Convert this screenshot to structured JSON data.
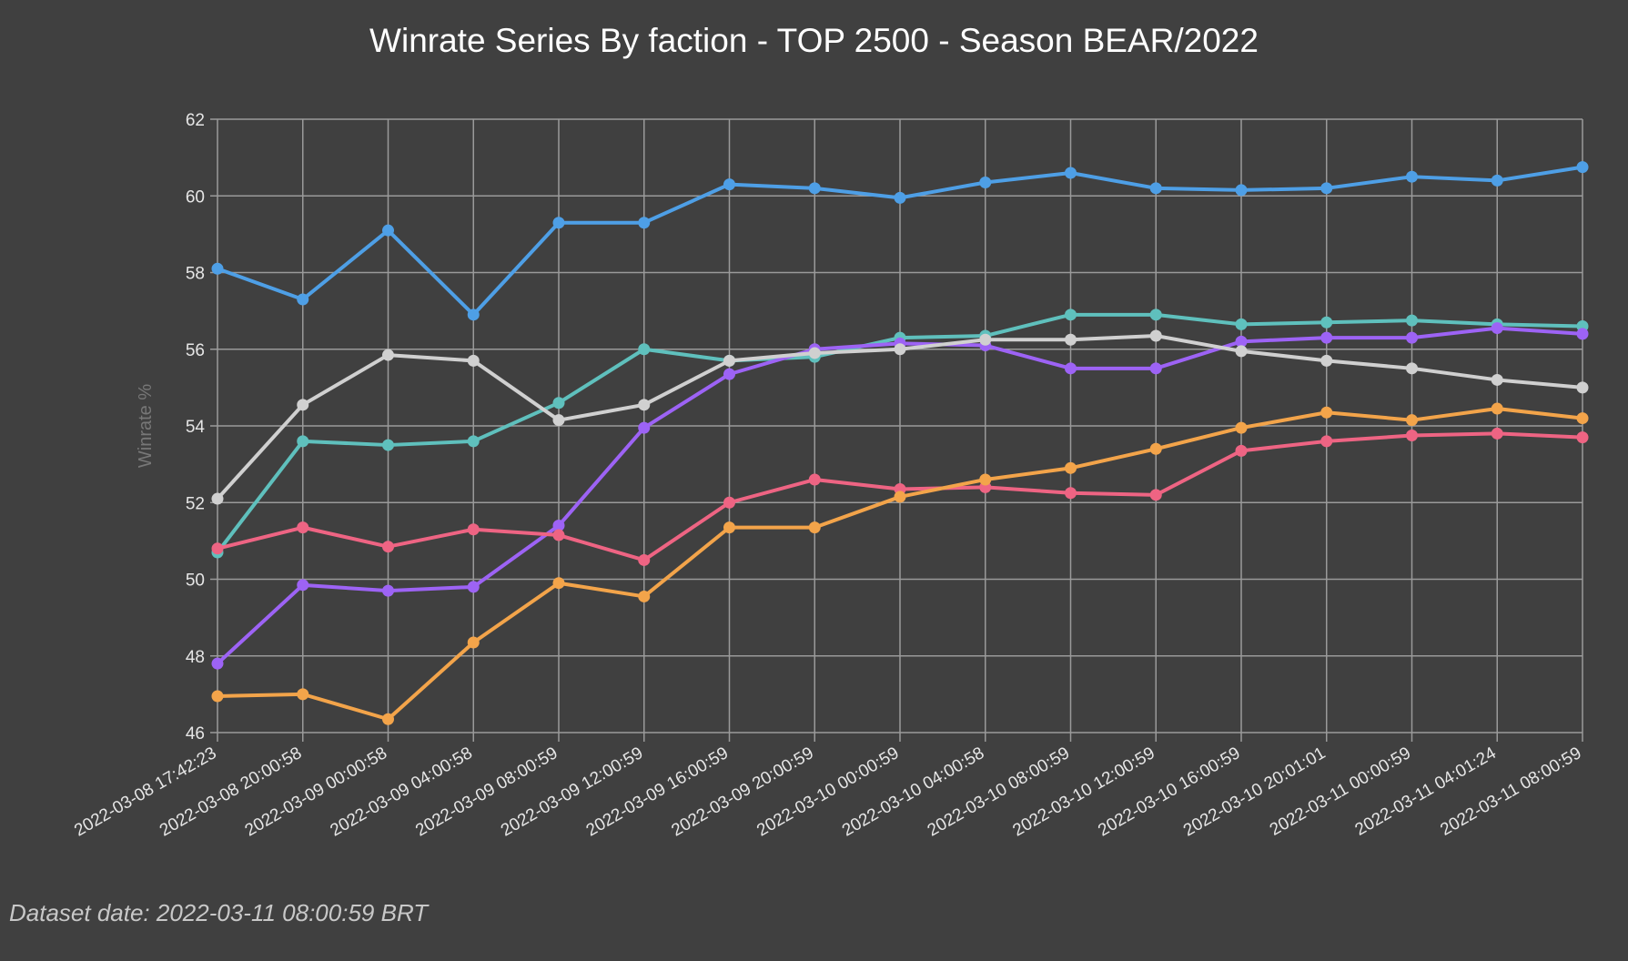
{
  "chart_data": {
    "type": "line",
    "title": "Winrate Series By faction - TOP 2500 - Season BEAR/2022",
    "xlabel": "",
    "ylabel": "Winrate %",
    "ylim": [
      46,
      62
    ],
    "yticks": [
      46,
      48,
      50,
      52,
      54,
      56,
      58,
      60,
      62
    ],
    "grid": true,
    "legend": "none",
    "categories": [
      "2022-03-08 17:42:23",
      "2022-03-08 20:00:58",
      "2022-03-09 00:00:58",
      "2022-03-09 04:00:58",
      "2022-03-09 08:00:59",
      "2022-03-09 12:00:59",
      "2022-03-09 16:00:59",
      "2022-03-09 20:00:59",
      "2022-03-10 00:00:59",
      "2022-03-10 04:00:58",
      "2022-03-10 08:00:59",
      "2022-03-10 12:00:59",
      "2022-03-10 16:00:59",
      "2022-03-10 20:01:01",
      "2022-03-11 00:00:59",
      "2022-03-11 04:01:24",
      "2022-03-11 08:00:59"
    ],
    "series": [
      {
        "color": "#4e9fe6",
        "values": [
          58.1,
          57.3,
          59.1,
          56.9,
          59.3,
          59.3,
          60.3,
          60.2,
          59.95,
          60.35,
          60.6,
          60.2,
          60.15,
          60.2,
          60.5,
          60.4,
          60.75
        ]
      },
      {
        "color": "#5fc0bd",
        "values": [
          50.7,
          53.6,
          53.5,
          53.6,
          54.6,
          56.0,
          55.7,
          55.8,
          56.3,
          56.35,
          56.9,
          56.9,
          56.65,
          56.7,
          56.75,
          56.65,
          56.6
        ]
      },
      {
        "color": "#9d63f5",
        "values": [
          47.8,
          49.85,
          49.7,
          49.8,
          51.4,
          53.95,
          55.35,
          56.0,
          56.15,
          56.1,
          55.5,
          55.5,
          56.2,
          56.3,
          56.3,
          56.55,
          56.4
        ]
      },
      {
        "color": "#d0d0d0",
        "values": [
          52.1,
          54.55,
          55.85,
          55.7,
          54.15,
          54.55,
          55.7,
          55.9,
          56.0,
          56.25,
          56.25,
          56.35,
          55.95,
          55.7,
          55.5,
          55.2,
          55.0
        ]
      },
      {
        "color": "#ee6483",
        "values": [
          50.8,
          51.35,
          50.85,
          51.3,
          51.15,
          50.5,
          52.0,
          52.6,
          52.35,
          52.4,
          52.25,
          52.2,
          53.35,
          53.6,
          53.75,
          53.8,
          53.7
        ]
      },
      {
        "color": "#f3a44a",
        "values": [
          46.95,
          47.0,
          46.35,
          48.35,
          49.9,
          49.55,
          51.35,
          51.35,
          52.15,
          52.6,
          52.9,
          53.4,
          53.95,
          54.35,
          54.15,
          54.45,
          54.2
        ]
      }
    ]
  },
  "footer": "Dataset date: 2022-03-11 08:00:59 BRT"
}
